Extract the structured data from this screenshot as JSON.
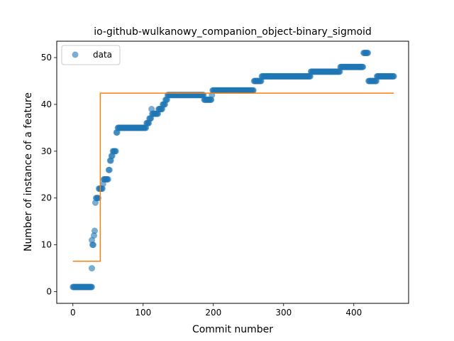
{
  "chart_data": {
    "type": "scatter",
    "title": "io-github-wulkanowy_companion_object-binary_sigmoid",
    "xlabel": "Commit number",
    "ylabel": "Number of instance of a feature",
    "xlim": [
      -23,
      478
    ],
    "ylim": [
      -2.5,
      53.5
    ],
    "xticks": [
      0,
      100,
      200,
      300,
      400
    ],
    "yticks": [
      0,
      10,
      20,
      30,
      40,
      50
    ],
    "legend": {
      "position": "top-left",
      "entries": [
        "data"
      ]
    },
    "colors": {
      "data": "#1f77b4",
      "fit": "#ff7f0e"
    },
    "series": [
      {
        "name": "data",
        "kind": "scatter",
        "segments": [
          [
            0,
            27,
            1
          ],
          [
            27,
            27,
            5
          ],
          [
            27,
            27,
            11
          ],
          [
            28,
            29,
            10
          ],
          [
            30,
            30,
            12
          ],
          [
            31,
            31,
            13
          ],
          [
            32,
            32,
            19
          ],
          [
            33,
            34,
            20
          ],
          [
            35,
            36,
            20
          ],
          [
            37,
            38,
            22
          ],
          [
            39,
            42,
            22
          ],
          [
            43,
            43,
            23
          ],
          [
            44,
            48,
            24
          ],
          [
            49,
            50,
            24
          ],
          [
            51,
            52,
            26
          ],
          [
            53,
            54,
            28
          ],
          [
            55,
            56,
            29
          ],
          [
            57,
            61,
            30
          ],
          [
            62,
            63,
            34
          ],
          [
            64,
            104,
            35
          ],
          [
            105,
            108,
            36
          ],
          [
            109,
            111,
            37
          ],
          [
            112,
            112,
            39
          ],
          [
            113,
            121,
            38
          ],
          [
            122,
            127,
            39
          ],
          [
            128,
            131,
            40
          ],
          [
            132,
            134,
            41
          ],
          [
            135,
            186,
            42
          ],
          [
            187,
            197,
            41
          ],
          [
            198,
            198,
            42
          ],
          [
            199,
            257,
            43
          ],
          [
            258,
            268,
            45
          ],
          [
            269,
            338,
            46
          ],
          [
            339,
            380,
            47
          ],
          [
            381,
            413,
            48
          ],
          [
            414,
            420,
            51
          ],
          [
            421,
            432,
            45
          ],
          [
            433,
            457,
            46
          ]
        ]
      },
      {
        "name": "",
        "kind": "step",
        "points": [
          [
            0,
            6.5
          ],
          [
            39,
            6.5
          ],
          [
            39,
            42.4
          ],
          [
            457,
            42.4
          ]
        ]
      }
    ]
  }
}
